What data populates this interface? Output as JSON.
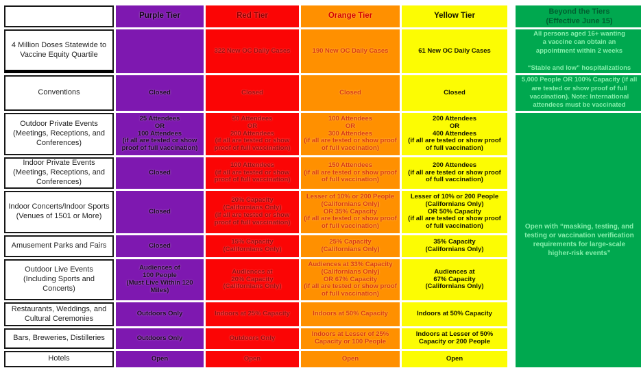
{
  "columns": {
    "purple": "Purple Tier",
    "red": "Red Tier",
    "orange": "Orange Tier",
    "yellow": "Yellow Tier",
    "beyond": "Beyond the Tiers\n(Effective June 15)"
  },
  "beyond_merged": "Open with “masking, testing, and testing or vaccination verification requirements for large-scale higher-risk events”",
  "colors": {
    "purple": "#7E18B0",
    "red": "#FB0505",
    "orange": "#FF9000",
    "yellow": "#FCFC03",
    "green": "#00A84F",
    "green_text": "#86EFAC",
    "red_text": "#9B0D0D",
    "orange_text": "#D93A12",
    "label_border": "#161616"
  },
  "rows": [
    {
      "label": "4 Million Doses Statewide to Vaccine Equity Quartile",
      "purple": "",
      "red": "322 New OC Daily Cases",
      "orange": "190 New OC Daily Cases",
      "yellow": "61 New OC Daily Cases",
      "beyond": "All persons aged 16+ wanting\na vaccine can obtain an\nappointment within 2 weeks\n\n“Stable and low” hospitalizations"
    },
    {
      "label": "Conventions",
      "purple": "Closed",
      "red": "Closed",
      "orange": "Closed",
      "yellow": "Closed",
      "beyond": "5,000 People OR 100% Capacity (if all are tested or show proof of full vaccination).  Note: International attendees must be vaccinated"
    },
    {
      "label": "Outdoor Private Events (Meetings, Receptions, and Conferences)",
      "purple": "25 Attendees\nOR\n100 Attendees\n(if all are tested or show proof of full vaccination)",
      "red": "50 Attendees\nOR\n200 Attendees\n(if all are tested or show proof of full vaccination)",
      "orange": "100 Attendees\nOR\n300 Attendees\n(if all are tested or show proof of full vaccination)",
      "yellow": "200 Attendees\nOR\n400 Attendees\n(if all are tested or show proof of full vaccination)"
    },
    {
      "label": "Indoor Private Events (Meetings, Receptions, and Conferences)",
      "purple": "Closed",
      "red": "100 Attendees\n(if all are tested or show proof of full vaccination)",
      "orange": "150 Attendees\n(if all are tested or show proof of full vaccination)",
      "yellow": "200 Attendees\n(if all are tested or show proof of full vaccination)"
    },
    {
      "label": "Indoor Concerts/Indoor Sports (Venues of 1501  or More)",
      "purple": "Closed",
      "red": "20% Capacity\n(Californians Only)\n(if all are tested or show proof of full vaccination)",
      "orange": "Lesser of 10% or 200  People\n(Californians Only)\nOR 35% Capacity\n(if all are tested or show proof of full vaccination)",
      "yellow": "Lesser of 10% or 200  People\n(Californians Only)\nOR 50% Capacity\n(if all are tested or show proof of full vaccination)"
    },
    {
      "label": "Amusement Parks and Fairs",
      "purple": "Closed",
      "red": "15% Capacity\n(Californians Only)",
      "orange": "25% Capacity\n(Californians Only)",
      "yellow": "35% Capacity\n(Californians Only)"
    },
    {
      "label": "Outdoor Live Events (Including Sports and Concerts)",
      "purple": "Audiences of\n100 People\n(Must Live Within 120 Miles)",
      "red": "Audiences at\n20% Capacity\n(Californians Only)",
      "orange": "Audiences at 33%  Capacity\n(Californians Only)\nOR 67% Capacity\n(if all are tested or show proof of full vaccination)",
      "yellow": "Audiences at\n67% Capacity\n(Californians Only)"
    },
    {
      "label": "Restaurants, Weddings, and Cultural Ceremonies",
      "purple": "Outdoors Only",
      "red": "Indoors at 25% Capacity",
      "orange": "Indoors at 50% Capacity",
      "yellow": "Indoors at 50%  Capacity"
    },
    {
      "label": "Bars, Breweries, Distilleries",
      "purple": "Outdoors Only",
      "red": "Outdoors Only",
      "orange": "Indoors at Lesser of 25% Capacity or 100 People",
      "yellow": "Indoors at Lesser of 50% Capacity or 200  People"
    },
    {
      "label": "Hotels",
      "purple": "Open",
      "red": "Open",
      "orange": "Open",
      "yellow": "Open"
    }
  ]
}
